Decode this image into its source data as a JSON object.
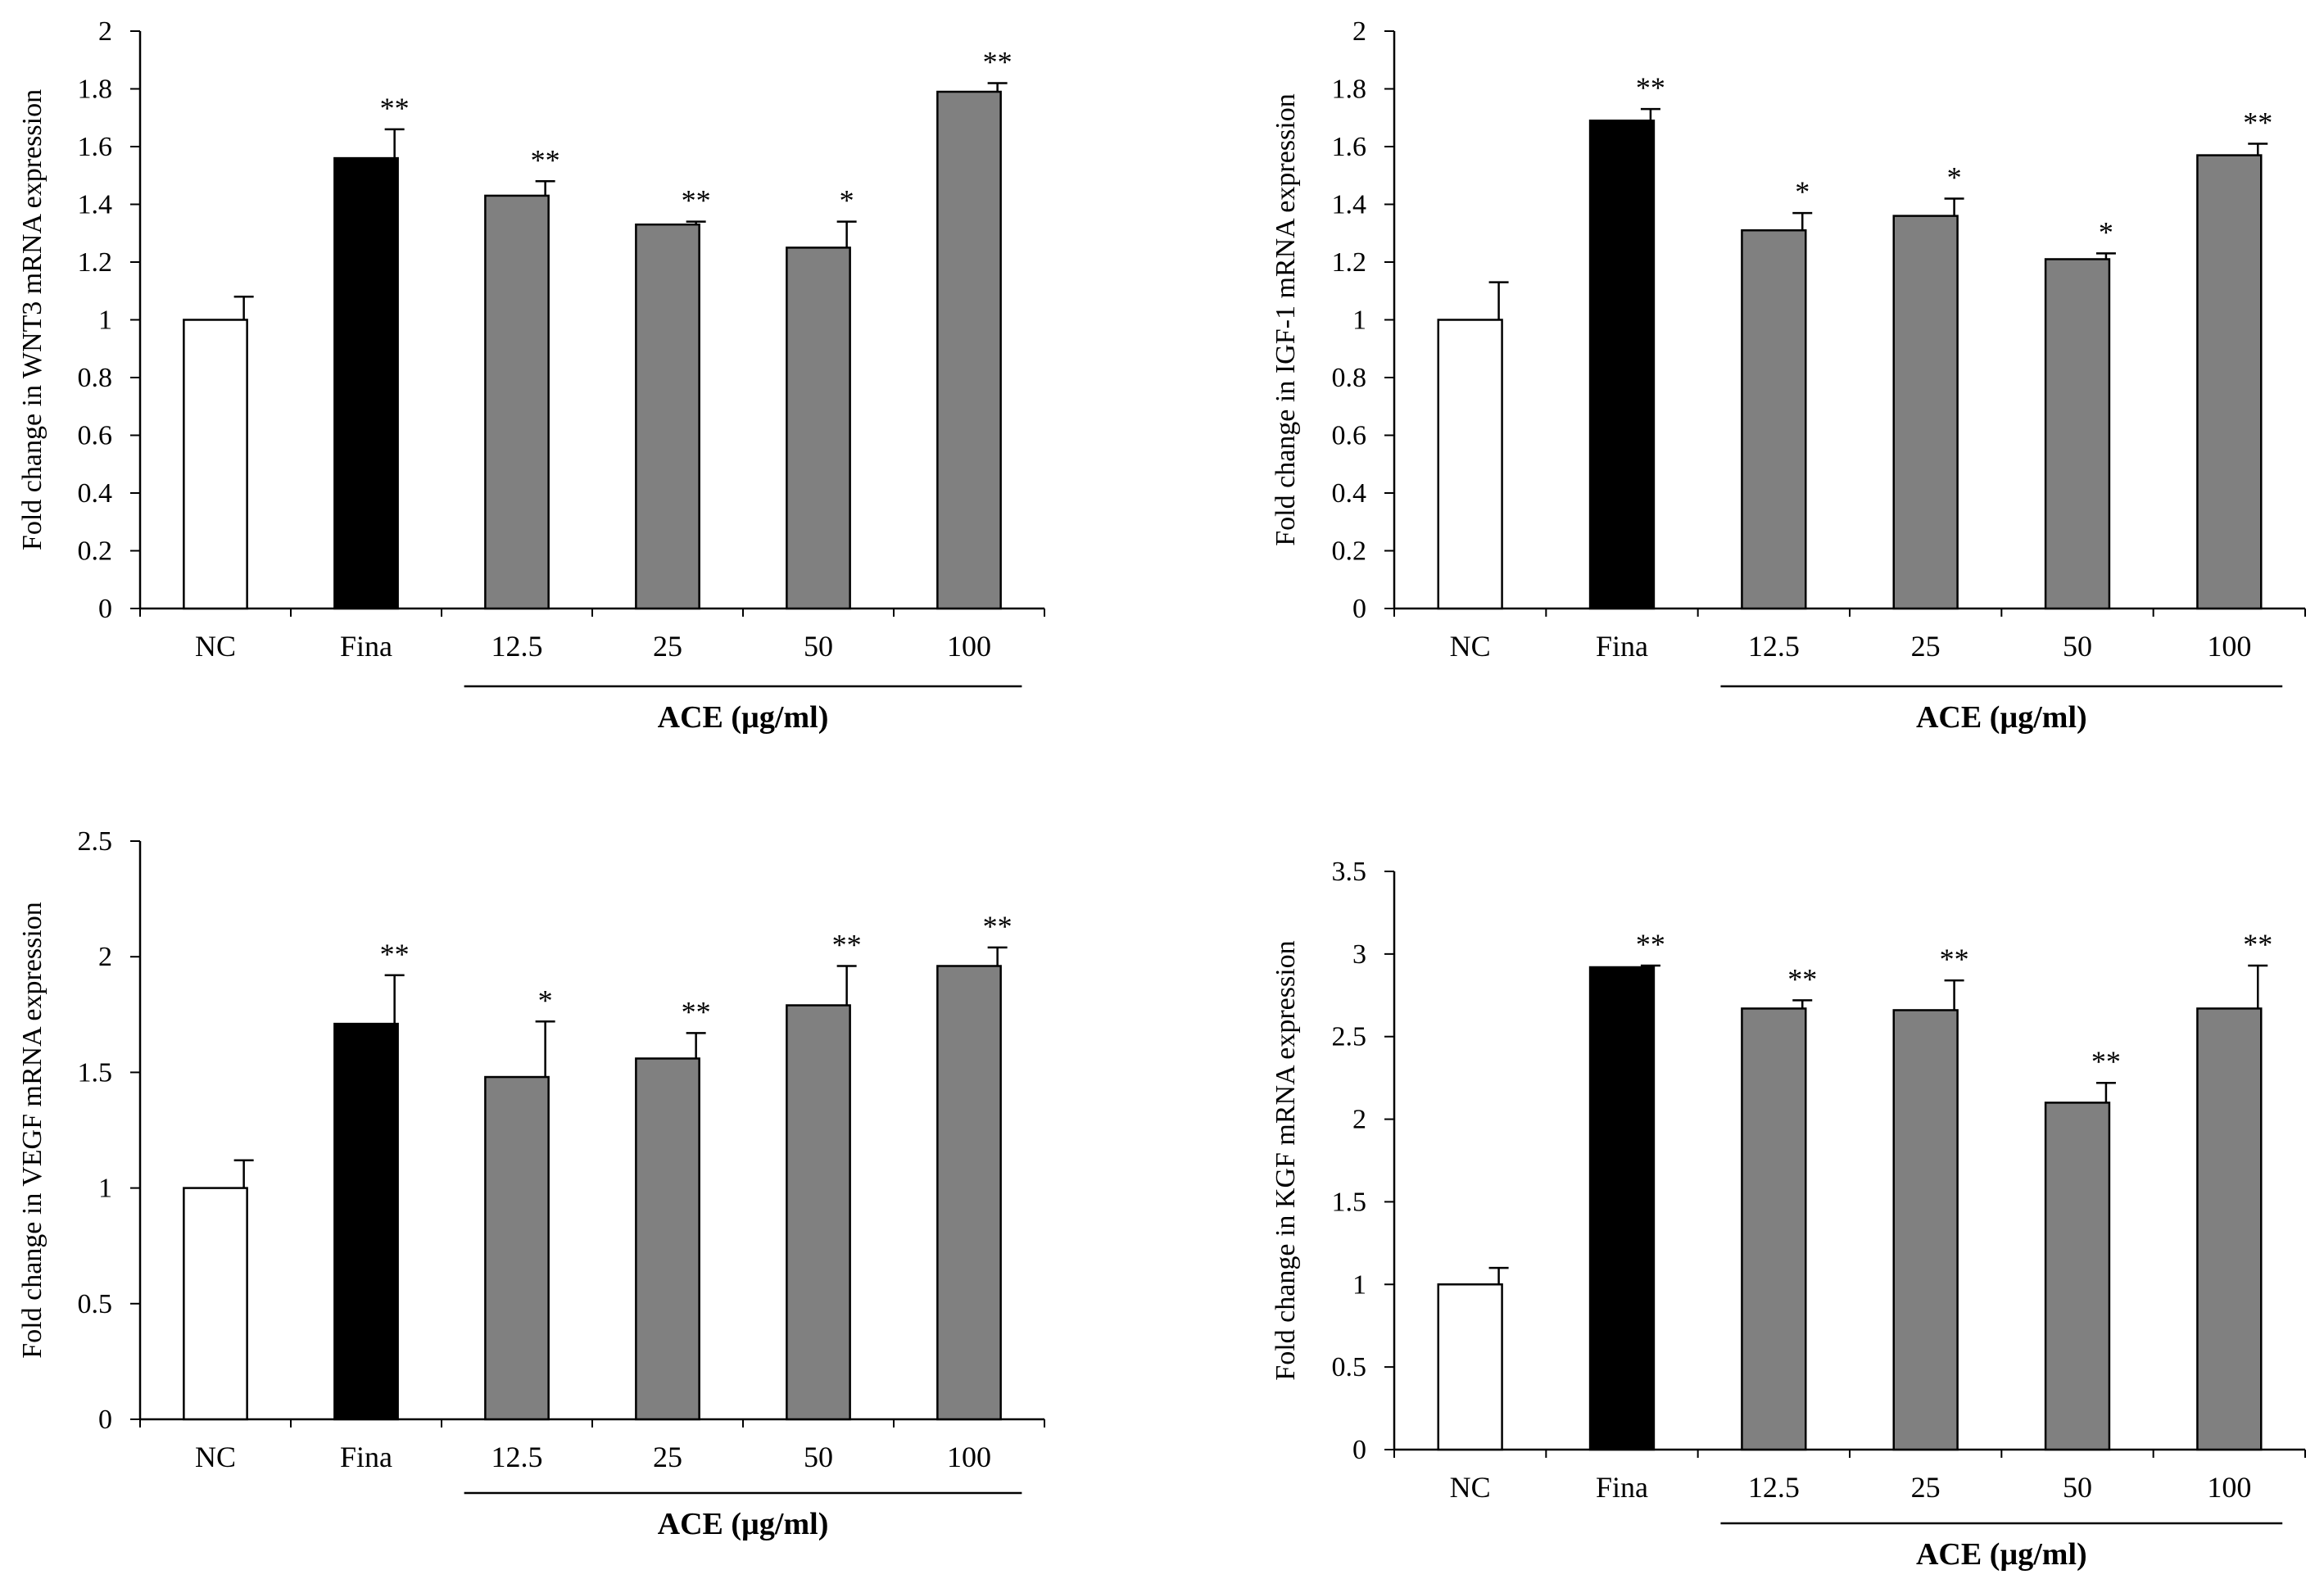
{
  "colors": {
    "nc_fill": "#ffffff",
    "fina_fill": "#000000",
    "ace_fill": "#808080",
    "stroke": "#000000"
  },
  "chart_data": [
    {
      "type": "bar",
      "ylabel": "Fold change in WNT3 mRNA expression",
      "ylim": [
        0,
        2
      ],
      "yticks": [
        0,
        0.2,
        0.4,
        0.6,
        0.8,
        1,
        1.2,
        1.4,
        1.6,
        1.8,
        2
      ],
      "ytick_labels": [
        "0",
        "0.2",
        "0.4",
        "0.6",
        "0.8",
        "1",
        "1.2",
        "1.4",
        "1.6",
        "1.8",
        "2"
      ],
      "categories": [
        "NC",
        "Fina",
        "12.5",
        "25",
        "50",
        "100"
      ],
      "values": [
        1.0,
        1.56,
        1.43,
        1.33,
        1.25,
        1.79
      ],
      "errors": [
        0.08,
        0.1,
        0.05,
        0.01,
        0.09,
        0.03
      ],
      "significance": [
        "",
        "**",
        "**",
        "**",
        "*",
        "**"
      ],
      "group_label": "ACE (µg/ml)",
      "group_span": [
        2,
        5
      ]
    },
    {
      "type": "bar",
      "ylabel": "Fold change in IGF-1 mRNA expression",
      "ylim": [
        0,
        2
      ],
      "yticks": [
        0,
        0.2,
        0.4,
        0.6,
        0.8,
        1,
        1.2,
        1.4,
        1.6,
        1.8,
        2
      ],
      "ytick_labels": [
        "0",
        "0.2",
        "0.4",
        "0.6",
        "0.8",
        "1",
        "1.2",
        "1.4",
        "1.6",
        "1.8",
        "2"
      ],
      "categories": [
        "NC",
        "Fina",
        "12.5",
        "25",
        "50",
        "100"
      ],
      "values": [
        1.0,
        1.69,
        1.31,
        1.36,
        1.21,
        1.57
      ],
      "errors": [
        0.13,
        0.04,
        0.06,
        0.06,
        0.02,
        0.04
      ],
      "significance": [
        "",
        "**",
        "*",
        "*",
        "*",
        "**"
      ],
      "group_label": "ACE (µg/ml)",
      "group_span": [
        2,
        5
      ]
    },
    {
      "type": "bar",
      "ylabel": "Fold change in VEGF mRNA expression",
      "ylim": [
        0,
        2.5
      ],
      "yticks": [
        0,
        0.5,
        1,
        1.5,
        2,
        2.5
      ],
      "ytick_labels": [
        "0",
        "0.5",
        "1",
        "1.5",
        "2",
        "2.5"
      ],
      "categories": [
        "NC",
        "Fina",
        "12.5",
        "25",
        "50",
        "100"
      ],
      "values": [
        1.0,
        1.71,
        1.48,
        1.56,
        1.79,
        1.96
      ],
      "errors": [
        0.12,
        0.21,
        0.24,
        0.11,
        0.17,
        0.08
      ],
      "significance": [
        "",
        "**",
        "*",
        "**",
        "**",
        "**"
      ],
      "group_label": "ACE (µg/ml)",
      "group_span": [
        2,
        5
      ]
    },
    {
      "type": "bar",
      "ylabel": "Fold change in KGF mRNA expression",
      "ylim": [
        0,
        3.5
      ],
      "yticks": [
        0,
        0.5,
        1,
        1.5,
        2,
        2.5,
        3,
        3.5
      ],
      "ytick_labels": [
        "0",
        "0.5",
        "1",
        "1.5",
        "2",
        "2.5",
        "3",
        "3.5"
      ],
      "categories": [
        "NC",
        "Fina",
        "12.5",
        "25",
        "50",
        "100"
      ],
      "values": [
        1.0,
        2.92,
        2.67,
        2.66,
        2.1,
        2.67
      ],
      "errors": [
        0.1,
        0.01,
        0.05,
        0.18,
        0.12,
        0.26
      ],
      "significance": [
        "",
        "**",
        "**",
        "**",
        "**",
        "**"
      ],
      "group_label": "ACE (µg/ml)",
      "group_span": [
        2,
        5
      ]
    }
  ]
}
